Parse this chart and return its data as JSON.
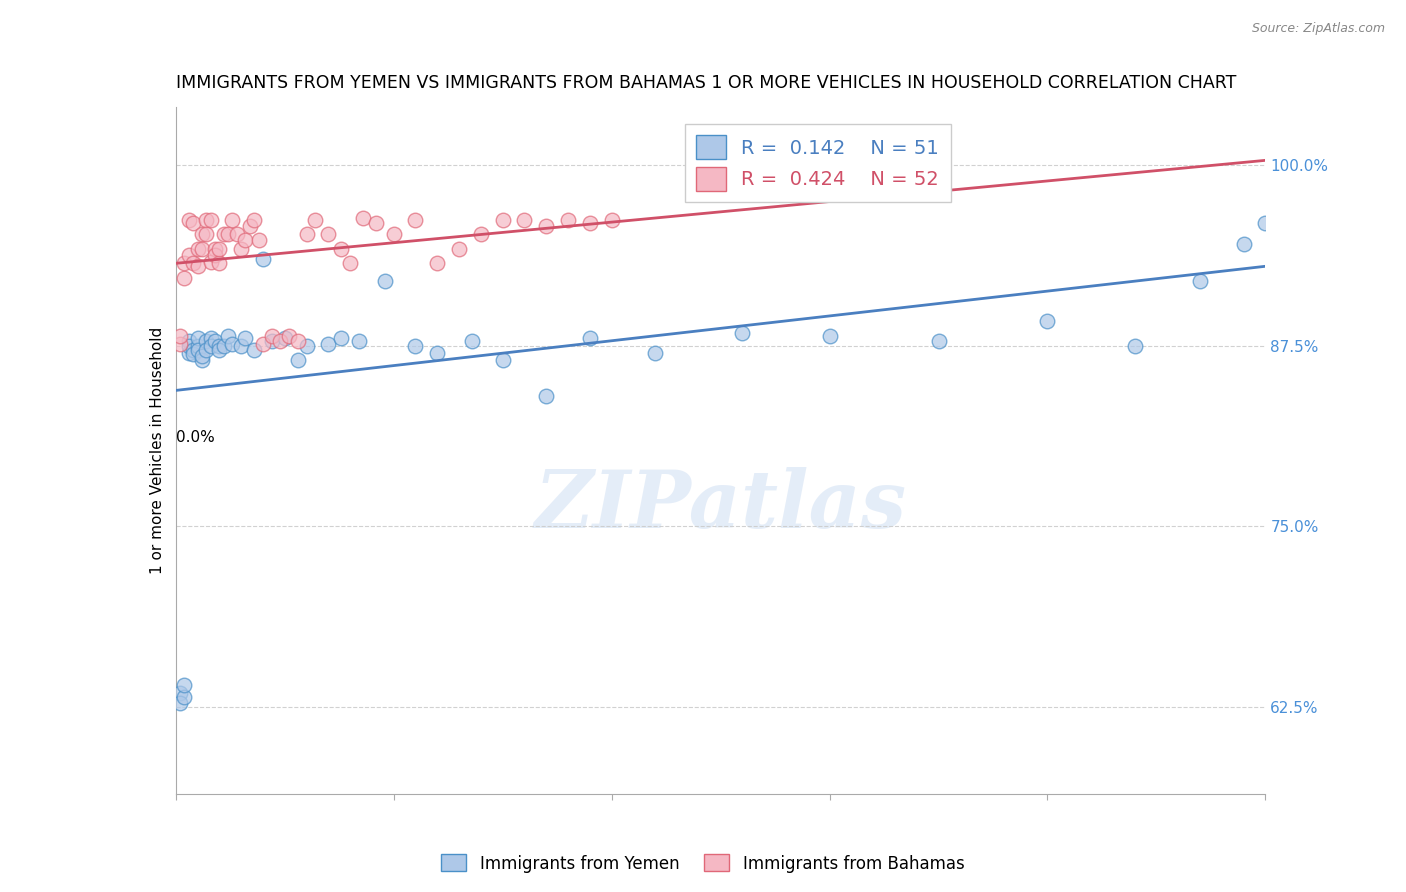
{
  "title": "IMMIGRANTS FROM YEMEN VS IMMIGRANTS FROM BAHAMAS 1 OR MORE VEHICLES IN HOUSEHOLD CORRELATION CHART",
  "source": "Source: ZipAtlas.com",
  "ylabel": "1 or more Vehicles in Household",
  "ytick_values": [
    0.625,
    0.75,
    0.875,
    1.0
  ],
  "xmin": 0.0,
  "xmax": 0.25,
  "ymin": 0.565,
  "ymax": 1.04,
  "legend_blue_r": "0.142",
  "legend_blue_n": "51",
  "legend_pink_r": "0.424",
  "legend_pink_n": "52",
  "legend_blue_label": "Immigrants from Yemen",
  "legend_pink_label": "Immigrants from Bahamas",
  "watermark": "ZIPatlas",
  "blue_fill": "#aec8e8",
  "blue_edge": "#4a90c8",
  "pink_fill": "#f5b8c4",
  "pink_edge": "#e06878",
  "blue_line": "#4a7fc0",
  "pink_line": "#d05068",
  "grid_color": "#cccccc",
  "ytick_color": "#4a90d8",
  "yemen_x": [
    0.001,
    0.001,
    0.002,
    0.002,
    0.003,
    0.003,
    0.003,
    0.004,
    0.004,
    0.005,
    0.005,
    0.005,
    0.006,
    0.006,
    0.007,
    0.007,
    0.008,
    0.008,
    0.009,
    0.01,
    0.01,
    0.011,
    0.012,
    0.013,
    0.015,
    0.016,
    0.018,
    0.02,
    0.022,
    0.025,
    0.028,
    0.03,
    0.035,
    0.038,
    0.042,
    0.048,
    0.055,
    0.06,
    0.068,
    0.075,
    0.085,
    0.095,
    0.11,
    0.13,
    0.15,
    0.175,
    0.2,
    0.22,
    0.235,
    0.245,
    0.25
  ],
  "yemen_y": [
    0.635,
    0.628,
    0.632,
    0.64,
    0.87,
    0.878,
    0.875,
    0.872,
    0.869,
    0.875,
    0.88,
    0.872,
    0.865,
    0.868,
    0.878,
    0.872,
    0.88,
    0.875,
    0.878,
    0.875,
    0.872,
    0.875,
    0.882,
    0.876,
    0.875,
    0.88,
    0.872,
    0.935,
    0.878,
    0.88,
    0.865,
    0.875,
    0.876,
    0.88,
    0.878,
    0.92,
    0.875,
    0.87,
    0.878,
    0.865,
    0.84,
    0.88,
    0.87,
    0.884,
    0.882,
    0.878,
    0.892,
    0.875,
    0.92,
    0.945,
    0.96
  ],
  "bahamas_x": [
    0.001,
    0.001,
    0.002,
    0.002,
    0.003,
    0.003,
    0.004,
    0.004,
    0.005,
    0.005,
    0.006,
    0.006,
    0.007,
    0.007,
    0.008,
    0.008,
    0.009,
    0.009,
    0.01,
    0.01,
    0.011,
    0.012,
    0.013,
    0.014,
    0.015,
    0.016,
    0.017,
    0.018,
    0.019,
    0.02,
    0.022,
    0.024,
    0.026,
    0.028,
    0.03,
    0.032,
    0.035,
    0.038,
    0.04,
    0.043,
    0.046,
    0.05,
    0.055,
    0.06,
    0.065,
    0.07,
    0.075,
    0.08,
    0.085,
    0.09,
    0.095,
    0.1
  ],
  "bahamas_y": [
    0.876,
    0.882,
    0.922,
    0.932,
    0.938,
    0.962,
    0.96,
    0.932,
    0.93,
    0.942,
    0.952,
    0.942,
    0.962,
    0.952,
    0.962,
    0.933,
    0.942,
    0.938,
    0.932,
    0.942,
    0.952,
    0.952,
    0.962,
    0.952,
    0.942,
    0.948,
    0.958,
    0.962,
    0.948,
    0.876,
    0.882,
    0.878,
    0.882,
    0.878,
    0.952,
    0.962,
    0.952,
    0.942,
    0.932,
    0.963,
    0.96,
    0.952,
    0.962,
    0.932,
    0.942,
    0.952,
    0.962,
    0.962,
    0.958,
    0.962,
    0.96,
    0.962
  ]
}
